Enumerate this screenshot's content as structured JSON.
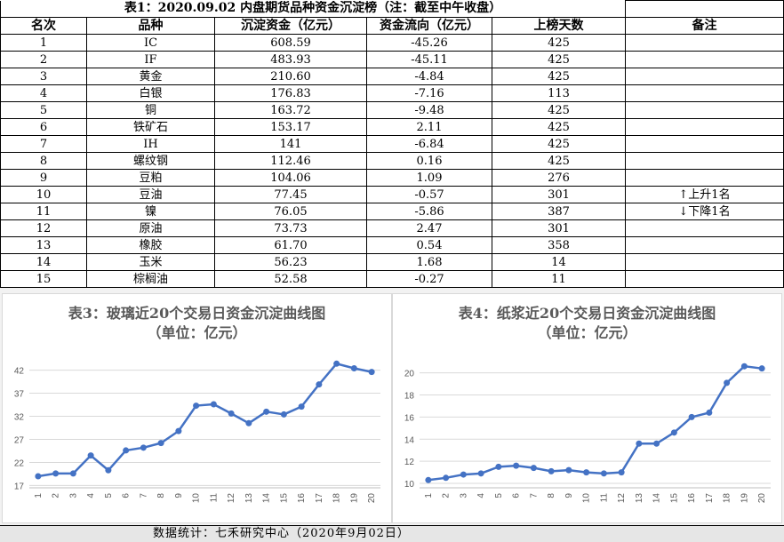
{
  "table": {
    "title": "表1：2020.09.02 内盘期货品种资金沉淀榜（注：截至中午收盘）",
    "headers": [
      "名次",
      "品种",
      "沉淀资金（亿元）",
      "资金流向（亿元）",
      "上榜天数",
      "备注"
    ],
    "rows": [
      {
        "rank": "1",
        "name": "IC",
        "fund": "608.59",
        "flow": "-45.26",
        "days": "425",
        "note": ""
      },
      {
        "rank": "2",
        "name": "IF",
        "fund": "483.93",
        "flow": "-45.11",
        "days": "425",
        "note": ""
      },
      {
        "rank": "3",
        "name": "黄金",
        "fund": "210.60",
        "flow": "-4.84",
        "days": "425",
        "note": ""
      },
      {
        "rank": "4",
        "name": "白银",
        "fund": "176.83",
        "flow": "-7.16",
        "days": "113",
        "note": ""
      },
      {
        "rank": "5",
        "name": "铜",
        "fund": "163.72",
        "flow": "-9.48",
        "days": "425",
        "note": ""
      },
      {
        "rank": "6",
        "name": "铁矿石",
        "fund": "153.17",
        "flow": "2.11",
        "days": "425",
        "note": ""
      },
      {
        "rank": "7",
        "name": "IH",
        "fund": "141",
        "flow": "-6.84",
        "days": "425",
        "note": ""
      },
      {
        "rank": "8",
        "name": "螺纹钢",
        "fund": "112.46",
        "flow": "0.16",
        "days": "425",
        "note": ""
      },
      {
        "rank": "9",
        "name": "豆粕",
        "fund": "104.06",
        "flow": "1.09",
        "days": "276",
        "note": ""
      },
      {
        "rank": "10",
        "name": "豆油",
        "fund": "77.45",
        "flow": "-0.57",
        "days": "301",
        "note": "↑上升1名"
      },
      {
        "rank": "11",
        "name": "镍",
        "fund": "76.05",
        "flow": "-5.86",
        "days": "387",
        "note": "↓下降1名"
      },
      {
        "rank": "12",
        "name": "原油",
        "fund": "73.73",
        "flow": "2.47",
        "days": "301",
        "note": ""
      },
      {
        "rank": "13",
        "name": "橡胶",
        "fund": "61.70",
        "flow": "0.54",
        "days": "358",
        "note": ""
      },
      {
        "rank": "14",
        "name": "玉米",
        "fund": "56.23",
        "flow": "1.68",
        "days": "14",
        "note": ""
      },
      {
        "rank": "15",
        "name": "棕榈油",
        "fund": "52.58",
        "flow": "-0.27",
        "days": "11",
        "note": ""
      }
    ]
  },
  "chart_data": [
    {
      "type": "line",
      "title": "表3：玻璃近20个交易日资金沉淀曲线图",
      "subtitle": "（单位：亿元）",
      "x": [
        "1",
        "2",
        "3",
        "4",
        "5",
        "6",
        "7",
        "8",
        "9",
        "10",
        "11",
        "12",
        "13",
        "14",
        "15",
        "16",
        "17",
        "18",
        "19",
        "20"
      ],
      "values": [
        19.0,
        19.6,
        19.6,
        23.5,
        20.3,
        24.6,
        25.2,
        26.2,
        28.8,
        34.3,
        34.6,
        32.6,
        30.5,
        33.0,
        32.4,
        34.1,
        38.9,
        43.4,
        42.4,
        41.6
      ],
      "yticks": [
        17,
        22,
        27,
        32,
        37,
        42
      ],
      "ylim": [
        16.5,
        45
      ],
      "color": "#4472c4"
    },
    {
      "type": "line",
      "title": "表4：纸浆近20个交易日资金沉淀曲线图",
      "subtitle": "（单位：亿元）",
      "x": [
        "1",
        "2",
        "3",
        "4",
        "5",
        "6",
        "7",
        "8",
        "9",
        "10",
        "11",
        "12",
        "13",
        "14",
        "15",
        "16",
        "17",
        "18",
        "19",
        "20"
      ],
      "values": [
        10.3,
        10.5,
        10.8,
        10.9,
        11.5,
        11.6,
        11.4,
        11.1,
        11.2,
        11.0,
        10.9,
        11.0,
        13.6,
        13.6,
        14.6,
        16.0,
        16.4,
        19.1,
        20.6,
        20.4
      ],
      "yticks": [
        10,
        12,
        14,
        16,
        18,
        20
      ],
      "ylim": [
        9.6,
        21.5
      ],
      "color": "#4472c4"
    }
  ],
  "footer": "数据统计：七禾研究中心（2020年9月02日）"
}
